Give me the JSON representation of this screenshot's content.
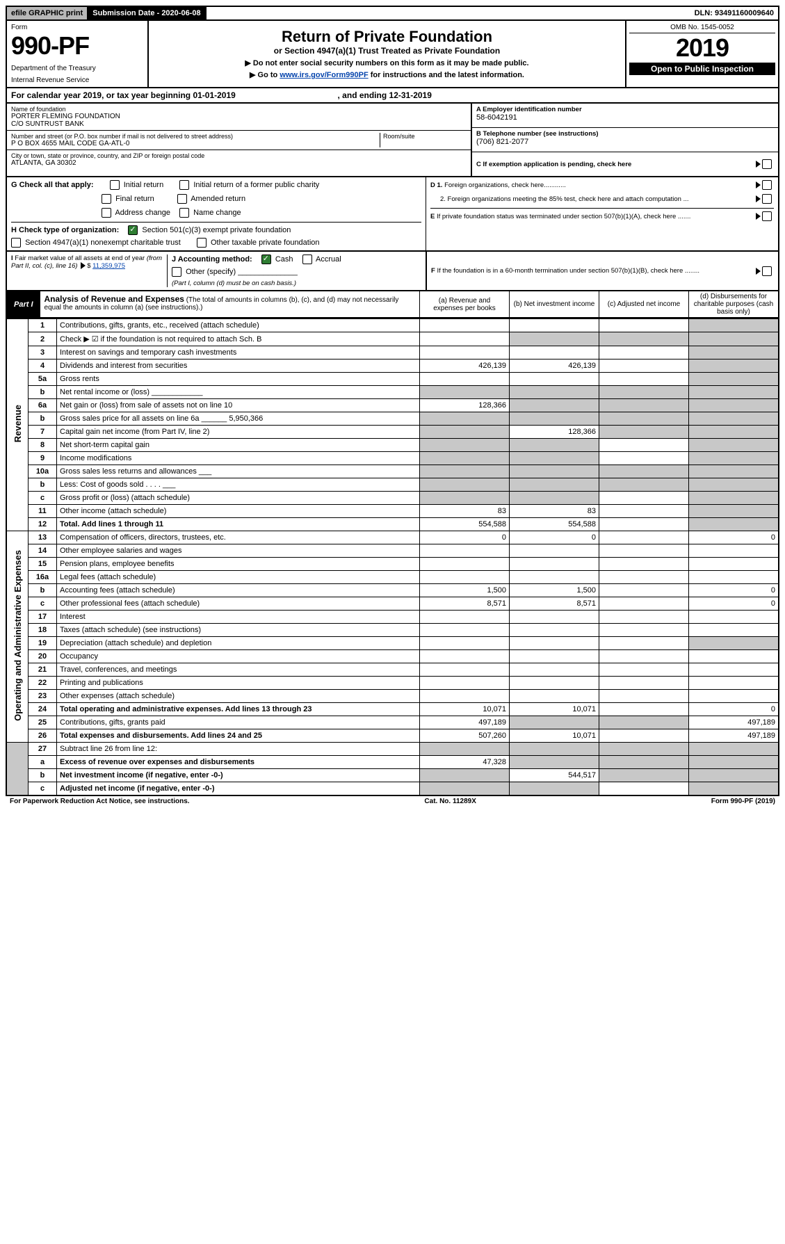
{
  "topbar": {
    "efile": "efile GRAPHIC print",
    "sub_lbl": "Submission Date - 2020-06-08",
    "dln": "DLN: 93491160009640"
  },
  "header": {
    "form": "Form",
    "form_no": "990-PF",
    "dept": "Department of the Treasury",
    "irs": "Internal Revenue Service",
    "title": "Return of Private Foundation",
    "subtitle": "or Section 4947(a)(1) Trust Treated as Private Foundation",
    "note1": "▶ Do not enter social security numbers on this form as it may be made public.",
    "note2_pre": "▶ Go to ",
    "note2_link": "www.irs.gov/Form990PF",
    "note2_post": " for instructions and the latest information.",
    "omb": "OMB No. 1545-0052",
    "year": "2019",
    "open": "Open to Public Inspection"
  },
  "cal": {
    "text_a": "For calendar year 2019, or tax year beginning 01-01-2019",
    "text_b": ", and ending 12-31-2019"
  },
  "entity": {
    "name_lbl": "Name of foundation",
    "name1": "PORTER FLEMING FOUNDATION",
    "name2": "C/O SUNTRUST BANK",
    "addr_lbl": "Number and street (or P.O. box number if mail is not delivered to street address)",
    "addr": "P O BOX 4655 MAIL CODE GA-ATL-0",
    "room_lbl": "Room/suite",
    "city_lbl": "City or town, state or province, country, and ZIP or foreign postal code",
    "city": "ATLANTA, GA  30302",
    "a_lbl": "A Employer identification number",
    "a_val": "58-6042191",
    "b_lbl": "B Telephone number (see instructions)",
    "b_val": "(706) 821-2077",
    "c_lbl": "C If exemption application is pending, check here"
  },
  "g": {
    "label": "G Check all that apply:",
    "opts": [
      "Initial return",
      "Initial return of a former public charity",
      "Final return",
      "Amended return",
      "Address change",
      "Name change"
    ]
  },
  "h": {
    "label": "H Check type of organization:",
    "opt1": "Section 501(c)(3) exempt private foundation",
    "opt2": "Section 4947(a)(1) nonexempt charitable trust",
    "opt3": "Other taxable private foundation"
  },
  "i": {
    "label": "I Fair market value of all assets at end of year (from Part II, col. (c), line 16)",
    "value": "11,359,975"
  },
  "j": {
    "label": "J Accounting method:",
    "cash": "Cash",
    "accrual": "Accrual",
    "other": "Other (specify)",
    "note": "(Part I, column (d) must be on cash basis.)"
  },
  "d": {
    "d1": "D 1. Foreign organizations, check here............",
    "d2": "2. Foreign organizations meeting the 85% test, check here and attach computation ...",
    "e": "E  If private foundation status was terminated under section 507(b)(1)(A), check here .......",
    "f": "F  If the foundation is in a 60-month termination under section 507(b)(1)(B), check here ........"
  },
  "part1": {
    "label": "Part I",
    "title": "Analysis of Revenue and Expenses",
    "title_note": "(The total of amounts in columns (b), (c), and (d) may not necessarily equal the amounts in column (a) (see instructions).)",
    "cols": {
      "a": "(a)   Revenue and expenses per books",
      "b": "(b)   Net investment income",
      "c": "(c)   Adjusted net income",
      "d": "(d)   Disbursements for charitable purposes (cash basis only)"
    }
  },
  "side": {
    "rev": "Revenue",
    "exp": "Operating and Administrative Expenses"
  },
  "rows": [
    {
      "n": "1",
      "d": "Contributions, gifts, grants, etc., received (attach schedule)",
      "a": "",
      "b": "",
      "c": "",
      "ds": "",
      "sb": "",
      "sc": "",
      "sd": "1"
    },
    {
      "n": "2",
      "d": "Check ▶ ☑ if the foundation is not required to attach Sch. B",
      "a": "",
      "b": "",
      "c": "",
      "ds": "",
      "sb": "1",
      "sc": "1",
      "sd": "1"
    },
    {
      "n": "3",
      "d": "Interest on savings and temporary cash investments",
      "a": "",
      "b": "",
      "c": "",
      "ds": "",
      "sd": "1"
    },
    {
      "n": "4",
      "d": "Dividends and interest from securities",
      "a": "426,139",
      "b": "426,139",
      "c": "",
      "ds": "",
      "sd": "1"
    },
    {
      "n": "5a",
      "d": "Gross rents",
      "a": "",
      "b": "",
      "c": "",
      "ds": "",
      "sd": "1"
    },
    {
      "n": "b",
      "d": "Net rental income or (loss)  ____________",
      "a": "",
      "b": "",
      "c": "",
      "ds": "",
      "sa": "1",
      "sb": "1",
      "sc": "1",
      "sd": "1"
    },
    {
      "n": "6a",
      "d": "Net gain or (loss) from sale of assets not on line 10",
      "a": "128,366",
      "b": "",
      "c": "",
      "ds": "",
      "sb": "1",
      "sc": "1",
      "sd": "1"
    },
    {
      "n": "b",
      "d": "Gross sales price for all assets on line 6a ______ 5,950,366",
      "a": "",
      "b": "",
      "c": "",
      "ds": "",
      "sa": "1",
      "sb": "1",
      "sc": "1",
      "sd": "1"
    },
    {
      "n": "7",
      "d": "Capital gain net income (from Part IV, line 2)",
      "a": "",
      "b": "128,366",
      "c": "",
      "ds": "",
      "sa": "1",
      "sc": "1",
      "sd": "1"
    },
    {
      "n": "8",
      "d": "Net short-term capital gain",
      "a": "",
      "b": "",
      "c": "",
      "ds": "",
      "sa": "1",
      "sb": "1",
      "sd": "1"
    },
    {
      "n": "9",
      "d": "Income modifications",
      "a": "",
      "b": "",
      "c": "",
      "ds": "",
      "sa": "1",
      "sb": "1",
      "sd": "1"
    },
    {
      "n": "10a",
      "d": "Gross sales less returns and allowances  ___",
      "a": "",
      "b": "",
      "c": "",
      "ds": "",
      "sa": "1",
      "sb": "1",
      "sc": "1",
      "sd": "1"
    },
    {
      "n": "b",
      "d": "Less: Cost of goods sold     . . . .  ___",
      "a": "",
      "b": "",
      "c": "",
      "ds": "",
      "sa": "1",
      "sb": "1",
      "sc": "1",
      "sd": "1"
    },
    {
      "n": "c",
      "d": "Gross profit or (loss) (attach schedule)",
      "a": "",
      "b": "",
      "c": "",
      "ds": "",
      "sa": "1",
      "sb": "1",
      "sd": "1"
    },
    {
      "n": "11",
      "d": "Other income (attach schedule)",
      "a": "83",
      "b": "83",
      "c": "",
      "ds": "",
      "sd": "1"
    },
    {
      "n": "12",
      "d": "Total. Add lines 1 through 11",
      "a": "554,588",
      "b": "554,588",
      "c": "",
      "ds": "",
      "sd": "1",
      "bold": "1"
    }
  ],
  "exp_rows": [
    {
      "n": "13",
      "d": "Compensation of officers, directors, trustees, etc.",
      "a": "0",
      "b": "0",
      "c": "",
      "ds": "0"
    },
    {
      "n": "14",
      "d": "Other employee salaries and wages",
      "a": "",
      "b": "",
      "c": "",
      "ds": ""
    },
    {
      "n": "15",
      "d": "Pension plans, employee benefits",
      "a": "",
      "b": "",
      "c": "",
      "ds": ""
    },
    {
      "n": "16a",
      "d": "Legal fees (attach schedule)",
      "a": "",
      "b": "",
      "c": "",
      "ds": ""
    },
    {
      "n": "b",
      "d": "Accounting fees (attach schedule)",
      "a": "1,500",
      "b": "1,500",
      "c": "",
      "ds": "0"
    },
    {
      "n": "c",
      "d": "Other professional fees (attach schedule)",
      "a": "8,571",
      "b": "8,571",
      "c": "",
      "ds": "0"
    },
    {
      "n": "17",
      "d": "Interest",
      "a": "",
      "b": "",
      "c": "",
      "ds": ""
    },
    {
      "n": "18",
      "d": "Taxes (attach schedule) (see instructions)",
      "a": "",
      "b": "",
      "c": "",
      "ds": ""
    },
    {
      "n": "19",
      "d": "Depreciation (attach schedule) and depletion",
      "a": "",
      "b": "",
      "c": "",
      "ds": "",
      "sd": "1"
    },
    {
      "n": "20",
      "d": "Occupancy",
      "a": "",
      "b": "",
      "c": "",
      "ds": ""
    },
    {
      "n": "21",
      "d": "Travel, conferences, and meetings",
      "a": "",
      "b": "",
      "c": "",
      "ds": ""
    },
    {
      "n": "22",
      "d": "Printing and publications",
      "a": "",
      "b": "",
      "c": "",
      "ds": ""
    },
    {
      "n": "23",
      "d": "Other expenses (attach schedule)",
      "a": "",
      "b": "",
      "c": "",
      "ds": ""
    },
    {
      "n": "24",
      "d": "Total operating and administrative expenses. Add lines 13 through 23",
      "a": "10,071",
      "b": "10,071",
      "c": "",
      "ds": "0",
      "bold": "1"
    },
    {
      "n": "25",
      "d": "Contributions, gifts, grants paid",
      "a": "497,189",
      "b": "",
      "c": "",
      "ds": "497,189",
      "sb": "1",
      "sc": "1"
    },
    {
      "n": "26",
      "d": "Total expenses and disbursements. Add lines 24 and 25",
      "a": "507,260",
      "b": "10,071",
      "c": "",
      "ds": "497,189",
      "bold": "1"
    }
  ],
  "net_rows": [
    {
      "n": "27",
      "d": "Subtract line 26 from line 12:",
      "a": "",
      "b": "",
      "c": "",
      "ds": "",
      "sa": "1",
      "sb": "1",
      "sc": "1",
      "sd": "1"
    },
    {
      "n": "a",
      "d": "Excess of revenue over expenses and disbursements",
      "a": "47,328",
      "b": "",
      "c": "",
      "ds": "",
      "bold": "1",
      "sb": "1",
      "sc": "1",
      "sd": "1"
    },
    {
      "n": "b",
      "d": "Net investment income (if negative, enter -0-)",
      "a": "",
      "b": "544,517",
      "c": "",
      "ds": "",
      "bold": "1",
      "sa": "1",
      "sc": "1",
      "sd": "1"
    },
    {
      "n": "c",
      "d": "Adjusted net income (if negative, enter -0-)",
      "a": "",
      "b": "",
      "c": "",
      "ds": "",
      "bold": "1",
      "sa": "1",
      "sb": "1",
      "sd": "1"
    }
  ],
  "footer": {
    "left": "For Paperwork Reduction Act Notice, see instructions.",
    "mid": "Cat. No. 11289X",
    "right": "Form 990-PF (2019)"
  }
}
